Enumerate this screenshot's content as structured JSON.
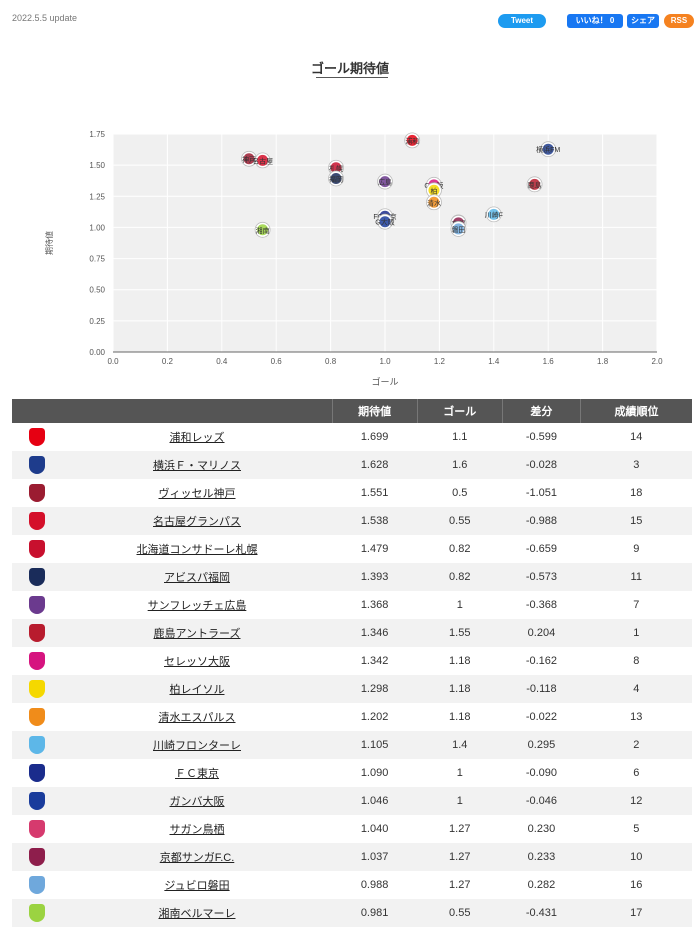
{
  "header": {
    "update_text": "2022.5.5 update",
    "share": {
      "tweet": "Tweet",
      "like": "いいね！ 0",
      "share": "シェア",
      "rss": "RSS"
    }
  },
  "title": "ゴール期待値",
  "chart_data": {
    "type": "scatter",
    "title": "",
    "xlabel": "ゴール",
    "ylabel": "期待値",
    "xlim": [
      0.0,
      2.0
    ],
    "ylim": [
      0.0,
      1.75
    ],
    "xticks": [
      "0.0",
      "0.2",
      "0.4",
      "0.6",
      "0.8",
      "1.0",
      "1.2",
      "1.4",
      "1.6",
      "1.8",
      "2.0"
    ],
    "yticks": [
      "0.00",
      "0.25",
      "0.50",
      "0.75",
      "1.00",
      "1.25",
      "1.50",
      "1.75"
    ],
    "grid": true,
    "points": [
      {
        "label": "浦和",
        "x": 1.1,
        "y": 1.699,
        "color": "#e60012"
      },
      {
        "label": "横浜FM",
        "x": 1.6,
        "y": 1.628,
        "color": "#1e3c8c"
      },
      {
        "label": "神戸",
        "x": 0.5,
        "y": 1.551,
        "color": "#9b1c31"
      },
      {
        "label": "名古屋",
        "x": 0.55,
        "y": 1.538,
        "color": "#d40f2a"
      },
      {
        "label": "札幌",
        "x": 0.82,
        "y": 1.479,
        "color": "#c8102e"
      },
      {
        "label": "福岡",
        "x": 0.82,
        "y": 1.393,
        "color": "#1a2c5a"
      },
      {
        "label": "広島",
        "x": 1.0,
        "y": 1.368,
        "color": "#6b3a8e"
      },
      {
        "label": "鹿島",
        "x": 1.55,
        "y": 1.346,
        "color": "#b81c2e"
      },
      {
        "label": "C大阪",
        "x": 1.18,
        "y": 1.342,
        "color": "#d6147f"
      },
      {
        "label": "柏",
        "x": 1.18,
        "y": 1.298,
        "color": "#f5d800"
      },
      {
        "label": "清水",
        "x": 1.18,
        "y": 1.202,
        "color": "#f08c1a"
      },
      {
        "label": "川崎F",
        "x": 1.4,
        "y": 1.105,
        "color": "#5db7e8"
      },
      {
        "label": "FC東京",
        "x": 1.0,
        "y": 1.09,
        "color": "#1a2c8c"
      },
      {
        "label": "G大阪",
        "x": 1.0,
        "y": 1.046,
        "color": "#1a3c9c"
      },
      {
        "label": "鳥栖",
        "x": 1.27,
        "y": 1.04,
        "color": "#d63a6e"
      },
      {
        "label": "京都",
        "x": 1.27,
        "y": 1.037,
        "color": "#8e1e4c"
      },
      {
        "label": "磐田",
        "x": 1.27,
        "y": 0.988,
        "color": "#6fa8dc"
      },
      {
        "label": "湘南",
        "x": 0.55,
        "y": 0.981,
        "color": "#9bd341"
      }
    ]
  },
  "table": {
    "headers": [
      "",
      "",
      "期待値",
      "ゴール",
      "差分",
      "成績順位"
    ],
    "rows": [
      {
        "team": "浦和レッズ",
        "xg": "1.699",
        "goals": "1.1",
        "diff": "-0.599",
        "rank": "14",
        "color": "#e60012"
      },
      {
        "team": "横浜Ｆ・マリノス",
        "xg": "1.628",
        "goals": "1.6",
        "diff": "-0.028",
        "rank": "3",
        "color": "#1e3c8c"
      },
      {
        "team": "ヴィッセル神戸",
        "xg": "1.551",
        "goals": "0.5",
        "diff": "-1.051",
        "rank": "18",
        "color": "#9b1c31"
      },
      {
        "team": "名古屋グランパス",
        "xg": "1.538",
        "goals": "0.55",
        "diff": "-0.988",
        "rank": "15",
        "color": "#d40f2a"
      },
      {
        "team": "北海道コンサドーレ札幌",
        "xg": "1.479",
        "goals": "0.82",
        "diff": "-0.659",
        "rank": "9",
        "color": "#c8102e"
      },
      {
        "team": "アビスパ福岡",
        "xg": "1.393",
        "goals": "0.82",
        "diff": "-0.573",
        "rank": "11",
        "color": "#1a2c5a"
      },
      {
        "team": "サンフレッチェ広島",
        "xg": "1.368",
        "goals": "1",
        "diff": "-0.368",
        "rank": "7",
        "color": "#6b3a8e"
      },
      {
        "team": "鹿島アントラーズ",
        "xg": "1.346",
        "goals": "1.55",
        "diff": "0.204",
        "rank": "1",
        "color": "#b81c2e"
      },
      {
        "team": "セレッソ大阪",
        "xg": "1.342",
        "goals": "1.18",
        "diff": "-0.162",
        "rank": "8",
        "color": "#d6147f"
      },
      {
        "team": "柏レイソル",
        "xg": "1.298",
        "goals": "1.18",
        "diff": "-0.118",
        "rank": "4",
        "color": "#f5d800"
      },
      {
        "team": "清水エスパルス",
        "xg": "1.202",
        "goals": "1.18",
        "diff": "-0.022",
        "rank": "13",
        "color": "#f08c1a"
      },
      {
        "team": "川崎フロンターレ",
        "xg": "1.105",
        "goals": "1.4",
        "diff": "0.295",
        "rank": "2",
        "color": "#5db7e8"
      },
      {
        "team": "ＦＣ東京",
        "xg": "1.090",
        "goals": "1",
        "diff": "-0.090",
        "rank": "6",
        "color": "#1a2c8c"
      },
      {
        "team": "ガンバ大阪",
        "xg": "1.046",
        "goals": "1",
        "diff": "-0.046",
        "rank": "12",
        "color": "#1a3c9c"
      },
      {
        "team": "サガン鳥栖",
        "xg": "1.040",
        "goals": "1.27",
        "diff": "0.230",
        "rank": "5",
        "color": "#d63a6e"
      },
      {
        "team": "京都サンガF.C.",
        "xg": "1.037",
        "goals": "1.27",
        "diff": "0.233",
        "rank": "10",
        "color": "#8e1e4c"
      },
      {
        "team": "ジュビロ磐田",
        "xg": "0.988",
        "goals": "1.27",
        "diff": "0.282",
        "rank": "16",
        "color": "#6fa8dc"
      },
      {
        "team": "湘南ベルマーレ",
        "xg": "0.981",
        "goals": "0.55",
        "diff": "-0.431",
        "rank": "17",
        "color": "#9bd341"
      }
    ]
  }
}
